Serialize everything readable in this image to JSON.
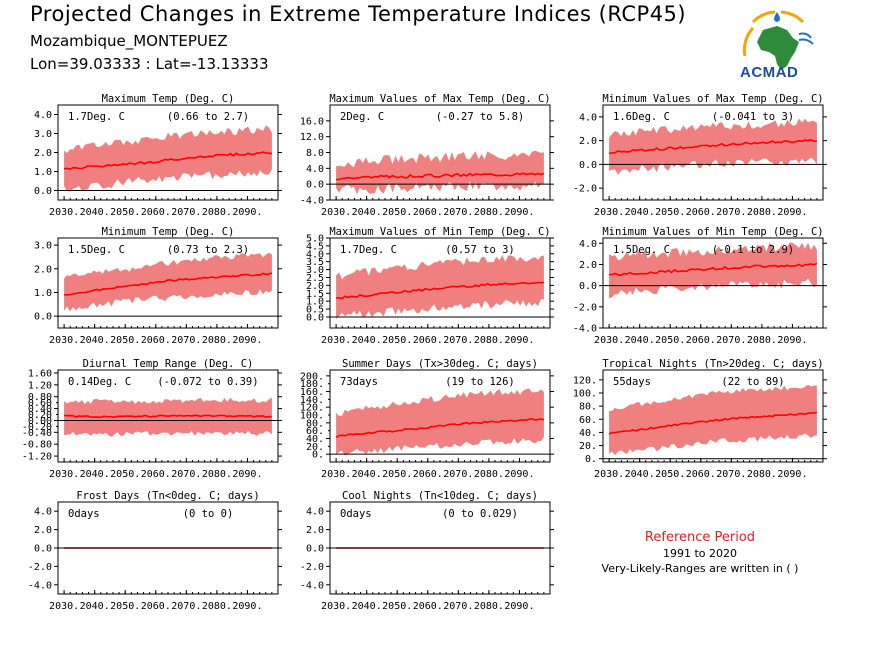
{
  "header": {
    "title": "Projected Changes in Extreme Temperature Indices (RCP45)",
    "location": "Mozambique_MONTEPUEZ",
    "coords": "Lon=39.03333 : Lat=-13.13333"
  },
  "logo": {
    "text": "ACMAD"
  },
  "reference": {
    "title": "Reference Period",
    "years": "1991 to 2020",
    "note": "Very-Likely-Ranges are written in ( )"
  },
  "colors": {
    "band": "#f08080",
    "line": "#ff0000",
    "zero_line": "#000000"
  },
  "chart_data": [
    {
      "type": "area",
      "title": "Maximum Temp (Deg. C)",
      "summary": "1.7Deg. C",
      "range": "(0.66 to 2.7)",
      "x": [
        2030,
        2040,
        2050,
        2060,
        2070,
        2080,
        2090
      ],
      "x_tick_labels": [
        "2030.",
        "2040.",
        "2050.",
        "2060.",
        "2070.",
        "2080.",
        "2090."
      ],
      "ylim": [
        -0.5,
        4.5
      ],
      "yticks": [
        0.0,
        1.0,
        2.0,
        3.0,
        4.0
      ],
      "ytick_labels": [
        "0.0",
        "1.0",
        "2.0",
        "3.0",
        "4.0"
      ],
      "mean": [
        1.1,
        1.3,
        1.4,
        1.6,
        1.8,
        1.9,
        2.0
      ],
      "low": [
        0.3,
        0.5,
        0.7,
        0.9,
        1.0,
        1.1,
        1.2
      ],
      "high": [
        1.9,
        2.2,
        2.4,
        2.6,
        2.8,
        2.9,
        3.0
      ],
      "noise": 0.5
    },
    {
      "type": "area",
      "title": "Maximum Values of Max Temp (Deg. C)",
      "summary": "2Deg. C",
      "range": "(-0.27 to 5.8)",
      "x": [
        2030,
        2040,
        2050,
        2060,
        2070,
        2080,
        2090
      ],
      "x_tick_labels": [
        "2030.",
        "2040.",
        "2050.",
        "2060.",
        "2070.",
        "2080.",
        "2090."
      ],
      "ylim": [
        -4.0,
        20.0
      ],
      "yticks": [
        -4.0,
        0.0,
        4.0,
        8.0,
        12.0,
        16.0
      ],
      "ytick_labels": [
        "-4.0",
        "0.0",
        "4.0",
        "8.0",
        "12.0",
        "16.0"
      ],
      "mean": [
        1.5,
        1.8,
        2.0,
        2.2,
        2.4,
        2.5,
        2.6
      ],
      "low": [
        0.0,
        0.2,
        0.4,
        0.6,
        0.8,
        0.9,
        1.0
      ],
      "high": [
        4.0,
        4.5,
        5.0,
        5.5,
        6.0,
        6.0,
        6.0
      ],
      "noise": 3.0
    },
    {
      "type": "area",
      "title": "Minimum Values of Max Temp (Deg. C)",
      "summary": "1.6Deg. C",
      "range": "(-0.041 to 3)",
      "x": [
        2030,
        2040,
        2050,
        2060,
        2070,
        2080,
        2090
      ],
      "x_tick_labels": [
        "2030.",
        "2040.",
        "2050.",
        "2060.",
        "2070.",
        "2080.",
        "2090."
      ],
      "ylim": [
        -3.0,
        5.0
      ],
      "yticks": [
        -2.0,
        0.0,
        2.0,
        4.0
      ],
      "ytick_labels": [
        "-2.0",
        "0.0",
        "2.0",
        "4.0"
      ],
      "mean": [
        1.0,
        1.2,
        1.4,
        1.6,
        1.8,
        1.9,
        2.0
      ],
      "low": [
        -0.2,
        0.0,
        0.2,
        0.4,
        0.6,
        0.6,
        0.7
      ],
      "high": [
        2.2,
        2.4,
        2.6,
        2.8,
        3.0,
        3.1,
        3.2
      ],
      "noise": 0.8
    },
    {
      "type": "area",
      "title": "Minimum Temp (Deg. C)",
      "summary": "1.5Deg. C",
      "range": "(0.73 to 2.3)",
      "x": [
        2030,
        2040,
        2050,
        2060,
        2070,
        2080,
        2090
      ],
      "x_tick_labels": [
        "2030.",
        "2040.",
        "2050.",
        "2060.",
        "2070.",
        "2080.",
        "2090."
      ],
      "ylim": [
        -0.5,
        3.3
      ],
      "yticks": [
        0.0,
        1.0,
        2.0,
        3.0
      ],
      "ytick_labels": [
        "0.0",
        "1.0",
        "2.0",
        "3.0"
      ],
      "mean": [
        0.9,
        1.1,
        1.3,
        1.5,
        1.6,
        1.7,
        1.8
      ],
      "low": [
        0.4,
        0.6,
        0.8,
        0.9,
        1.0,
        1.1,
        1.2
      ],
      "high": [
        1.5,
        1.7,
        1.9,
        2.1,
        2.3,
        2.4,
        2.5
      ],
      "noise": 0.3
    },
    {
      "type": "area",
      "title": "Maximum Values of Min Temp (Deg. C)",
      "summary": "1.7Deg. C",
      "range": "(0.57 to 3)",
      "x": [
        2030,
        2040,
        2050,
        2060,
        2070,
        2080,
        2090
      ],
      "x_tick_labels": [
        "2030.",
        "2040.",
        "2050.",
        "2060.",
        "2070.",
        "2080.",
        "2090."
      ],
      "ylim": [
        -0.7,
        5.0
      ],
      "yticks": [
        0.0,
        0.5,
        1.0,
        1.5,
        2.0,
        2.5,
        3.0,
        3.5,
        4.0,
        4.5,
        5.0
      ],
      "ytick_labels": [
        "0.0",
        "0.5",
        "1.0",
        "1.5",
        "2.0",
        "2.5",
        "3.0",
        "3.5",
        "4.0",
        "4.5",
        "5.0"
      ],
      "mean": [
        1.2,
        1.4,
        1.6,
        1.8,
        2.0,
        2.1,
        2.2
      ],
      "low": [
        0.3,
        0.5,
        0.7,
        0.9,
        1.0,
        1.1,
        1.2
      ],
      "high": [
        2.3,
        2.6,
        2.9,
        3.1,
        3.3,
        3.4,
        3.5
      ],
      "noise": 0.6
    },
    {
      "type": "area",
      "title": "Minimum Values of Min Temp (Deg. C)",
      "summary": "1.5Deg. C",
      "range": "(-0.1 to 2.9)",
      "x": [
        2030,
        2040,
        2050,
        2060,
        2070,
        2080,
        2090
      ],
      "x_tick_labels": [
        "2030.",
        "2040.",
        "2050.",
        "2060.",
        "2070.",
        "2080.",
        "2090."
      ],
      "ylim": [
        -4.0,
        4.5
      ],
      "yticks": [
        -4.0,
        -2.0,
        0.0,
        2.0,
        4.0
      ],
      "ytick_labels": [
        "-4.0",
        "-2.0",
        "0.0",
        "2.0",
        "4.0"
      ],
      "mean": [
        1.0,
        1.2,
        1.4,
        1.6,
        1.8,
        1.9,
        2.0
      ],
      "low": [
        -0.3,
        0.0,
        0.2,
        0.4,
        0.5,
        0.6,
        0.7
      ],
      "high": [
        2.2,
        2.5,
        2.7,
        2.9,
        3.1,
        3.2,
        3.3
      ],
      "noise": 1.0
    },
    {
      "type": "area",
      "title": "Diurnal Temp Range (Deg. C)",
      "summary": "0.14Deg. C",
      "range": "(-0.072 to 0.39)",
      "x": [
        2030,
        2040,
        2050,
        2060,
        2070,
        2080,
        2090
      ],
      "x_tick_labels": [
        "2030.",
        "2040.",
        "2050.",
        "2060.",
        "2070.",
        "2080.",
        "2090."
      ],
      "ylim": [
        -1.4,
        1.7
      ],
      "yticks": [
        -1.2,
        -0.8,
        -0.4,
        0.0,
        0.4,
        0.8,
        1.2,
        1.6
      ],
      "ytick_labels": [
        "-1.20",
        "-0.80",
        "-0.40",
        "0.00",
        "0.40",
        "0.80",
        "1.20",
        "1.60"
      ],
      "extra_ytick_labels": [
        "-0.20",
        "0.20",
        "0.60"
      ],
      "mean": [
        0.15,
        0.12,
        0.14,
        0.15,
        0.15,
        0.14,
        0.13
      ],
      "low": [
        -0.35,
        -0.4,
        -0.35,
        -0.35,
        -0.35,
        -0.35,
        -0.35
      ],
      "high": [
        0.5,
        0.55,
        0.55,
        0.55,
        0.6,
        0.6,
        0.6
      ],
      "noise": 0.2
    },
    {
      "type": "area",
      "title": "Summer Days (Tx>30deg. C; days)",
      "summary": "73days",
      "range": "(19 to 126)",
      "x": [
        2030,
        2040,
        2050,
        2060,
        2070,
        2080,
        2090
      ],
      "x_tick_labels": [
        "2030.",
        "2040.",
        "2050.",
        "2060.",
        "2070.",
        "2080.",
        "2090."
      ],
      "ylim": [
        -20,
        215
      ],
      "yticks": [
        0,
        40,
        80,
        120,
        160,
        200
      ],
      "ytick_labels": [
        "0.",
        "40.",
        "80.",
        "120.",
        "160.",
        "200."
      ],
      "extra_ytick_labels": [
        "20.",
        "60.",
        "100.",
        "140.",
        "180."
      ],
      "mean": [
        45,
        55,
        62,
        72,
        80,
        85,
        90
      ],
      "low": [
        10,
        18,
        25,
        32,
        38,
        42,
        45
      ],
      "high": [
        95,
        110,
        125,
        135,
        145,
        150,
        155
      ],
      "noise": 20
    },
    {
      "type": "area",
      "title": "Tropical Nights (Tn>20deg. C; days)",
      "summary": "55days",
      "range": "(22 to 89)",
      "x": [
        2030,
        2040,
        2050,
        2060,
        2070,
        2080,
        2090
      ],
      "x_tick_labels": [
        "2030.",
        "2040.",
        "2050.",
        "2060.",
        "2070.",
        "2080.",
        "2090."
      ],
      "ylim": [
        -5,
        135
      ],
      "yticks": [
        0,
        20,
        40,
        60,
        80,
        100,
        120
      ],
      "ytick_labels": [
        "0.",
        "20.",
        "40.",
        "60.",
        "80.",
        "100.",
        "120."
      ],
      "mean": [
        38,
        45,
        52,
        58,
        63,
        66,
        70
      ],
      "low": [
        12,
        18,
        24,
        30,
        34,
        37,
        40
      ],
      "high": [
        70,
        80,
        88,
        95,
        100,
        103,
        106
      ],
      "noise": 10
    },
    {
      "type": "area",
      "title": "Frost Days (Tn<0deg. C; days)",
      "summary": "0days",
      "range": "(0 to 0)",
      "x": [
        2030,
        2040,
        2050,
        2060,
        2070,
        2080,
        2090
      ],
      "x_tick_labels": [
        "2030.",
        "2040.",
        "2050.",
        "2060.",
        "2070.",
        "2080.",
        "2090."
      ],
      "ylim": [
        -5.0,
        5.0
      ],
      "yticks": [
        -4.0,
        -2.0,
        0.0,
        2.0,
        4.0
      ],
      "ytick_labels": [
        "-4.0",
        "-2.0",
        "0.0",
        "2.0",
        "4.0"
      ],
      "mean": [
        0,
        0,
        0,
        0,
        0,
        0,
        0
      ],
      "low": [
        0,
        0,
        0,
        0,
        0,
        0,
        0
      ],
      "high": [
        0,
        0,
        0,
        0,
        0,
        0,
        0
      ],
      "noise": 0
    },
    {
      "type": "area",
      "title": "Cool Nights (Tn<10deg. C; days)",
      "summary": "0days",
      "range": "(0 to 0.029)",
      "x": [
        2030,
        2040,
        2050,
        2060,
        2070,
        2080,
        2090
      ],
      "x_tick_labels": [
        "2030.",
        "2040.",
        "2050.",
        "2060.",
        "2070.",
        "2080.",
        "2090."
      ],
      "ylim": [
        -5.0,
        5.0
      ],
      "yticks": [
        -4.0,
        -2.0,
        0.0,
        2.0,
        4.0
      ],
      "ytick_labels": [
        "-4.0",
        "-2.0",
        "0.0",
        "2.0",
        "4.0"
      ],
      "mean": [
        0,
        0,
        0,
        0,
        0,
        0,
        0
      ],
      "low": [
        0,
        0,
        0,
        0,
        0,
        0,
        0
      ],
      "high": [
        0,
        0,
        0,
        0.03,
        0,
        0,
        0.03
      ],
      "noise": 0
    }
  ]
}
